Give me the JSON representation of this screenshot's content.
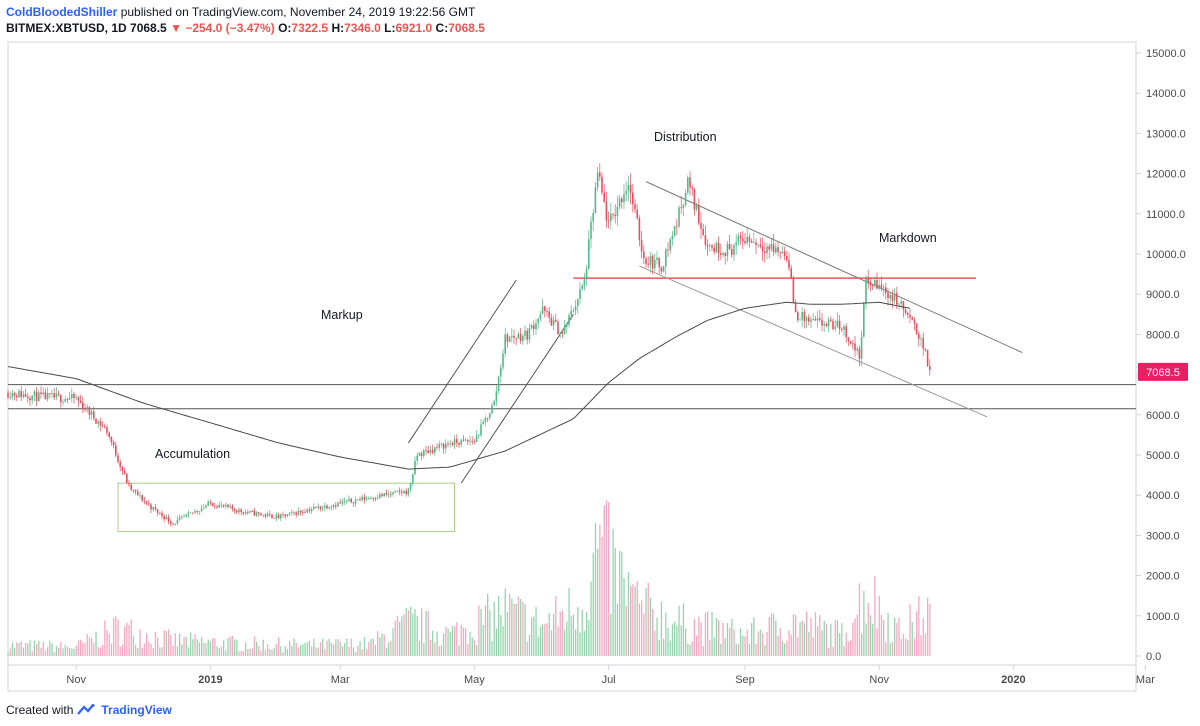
{
  "header": {
    "author": "ColdBloodedShiller",
    "published": "published on TradingView.com, November 24, 2019 19:22:56 GMT"
  },
  "symbol_line": {
    "symbol": "BITMEX:XBTUSD, 1D",
    "last": "7068.5",
    "change": "−254.0 (−3.47%)",
    "open_label": "O:",
    "open": "7322.5",
    "high_label": "H:",
    "high": "7346.0",
    "low_label": "L:",
    "low": "6921.0",
    "close_label": "C:",
    "close": "7068.5",
    "down_marker": "▼"
  },
  "footer": {
    "created_with": "Created with",
    "brand": "TradingView"
  },
  "colors": {
    "up": "#26a69a",
    "down": "#ef5350",
    "up_candle": "#53b987",
    "down_candle": "#eb4d5c",
    "resistance": "#ef5350",
    "price_label_bg": "#e91e63",
    "ma": "#4a4a4a",
    "box": "#7cb342"
  },
  "chart_data": {
    "type": "candlestick",
    "title": "",
    "y_ticks": [
      "15000.0",
      "14000.0",
      "13000.0",
      "12000.0",
      "11000.0",
      "10000.0",
      "9000.0",
      "8000.0",
      "7000.0",
      "6000.0",
      "5000.0",
      "4000.0",
      "3000.0",
      "2000.0",
      "1000.0",
      "0.0"
    ],
    "ylim": [
      0,
      15000
    ],
    "x_ticks": [
      "Nov",
      "2019",
      "Mar",
      "May",
      "Jul",
      "Sep",
      "Nov",
      "2020",
      "Mar"
    ],
    "last_price_label": "7068.5",
    "annotations": [
      "Accumulation",
      "Markup",
      "Distribution",
      "Markdown"
    ],
    "price_series": {
      "name": "XBTUSD",
      "dates": [
        "2018-10-01",
        "2018-10-15",
        "2018-11-01",
        "2018-11-15",
        "2018-11-25",
        "2018-12-05",
        "2018-12-15",
        "2019-01-01",
        "2019-01-15",
        "2019-02-01",
        "2019-02-15",
        "2019-03-01",
        "2019-03-15",
        "2019-04-01",
        "2019-04-05",
        "2019-04-20",
        "2019-05-01",
        "2019-05-10",
        "2019-05-15",
        "2019-05-25",
        "2019-06-01",
        "2019-06-10",
        "2019-06-20",
        "2019-06-26",
        "2019-07-01",
        "2019-07-10",
        "2019-07-17",
        "2019-07-25",
        "2019-08-01",
        "2019-08-06",
        "2019-08-15",
        "2019-08-25",
        "2019-09-01",
        "2019-09-10",
        "2019-09-20",
        "2019-09-24",
        "2019-10-01",
        "2019-10-15",
        "2019-10-23",
        "2019-10-26",
        "2019-11-01",
        "2019-11-10",
        "2019-11-20",
        "2019-11-24"
      ],
      "close": [
        6550,
        6450,
        6400,
        5600,
        4200,
        3700,
        3300,
        3800,
        3600,
        3450,
        3650,
        3800,
        3950,
        4100,
        5000,
        5300,
        5350,
        6300,
        7900,
        8000,
        8600,
        8000,
        9300,
        12000,
        10700,
        11800,
        9900,
        9700,
        10800,
        11800,
        10200,
        10100,
        10400,
        10200,
        10000,
        8500,
        8300,
        8200,
        7450,
        9300,
        9200,
        8800,
        7900,
        7068.5
      ]
    },
    "moving_average": {
      "name": "",
      "dates": [
        "2018-10-01",
        "2018-11-01",
        "2018-12-01",
        "2019-01-01",
        "2019-02-01",
        "2019-03-01",
        "2019-04-01",
        "2019-04-20",
        "2019-05-15",
        "2019-06-15",
        "2019-07-01",
        "2019-07-15",
        "2019-08-01",
        "2019-08-15",
        "2019-09-01",
        "2019-09-20",
        "2019-10-01",
        "2019-10-15",
        "2019-11-01",
        "2019-11-15"
      ],
      "values": [
        7200,
        6900,
        6300,
        5800,
        5300,
        4950,
        4650,
        4700,
        5100,
        5900,
        6800,
        7400,
        7950,
        8350,
        8650,
        8800,
        8750,
        8750,
        8800,
        8650
      ]
    },
    "volume": {
      "dates": [
        "2018-10-01",
        "2018-11-01",
        "2018-11-20",
        "2018-12-15",
        "2019-01-15",
        "2019-02-15",
        "2019-03-15",
        "2019-04-02",
        "2019-04-20",
        "2019-05-15",
        "2019-06-01",
        "2019-06-20",
        "2019-06-26",
        "2019-07-15",
        "2019-08-01",
        "2019-09-01",
        "2019-09-24",
        "2019-10-15",
        "2019-10-26",
        "2019-11-10",
        "2019-11-22"
      ],
      "values": [
        350,
        300,
        900,
        500,
        400,
        350,
        400,
        1100,
        700,
        1500,
        1000,
        1800,
        3600,
        1600,
        1100,
        700,
        1100,
        700,
        2100,
        800,
        1400
      ]
    },
    "lines": {
      "resistance": {
        "y": 9400,
        "x_from": "2019-06-15",
        "x_to": "2019-12-15"
      },
      "support_upper": {
        "y": 6750
      },
      "support_lower": {
        "y": 6150
      },
      "markup_channel_upper": {
        "from": [
          "2019-04-01",
          5300
        ],
        "to": [
          "2019-05-20",
          9350
        ]
      },
      "markup_channel_lower": {
        "from": [
          "2019-04-25",
          4300
        ],
        "to": [
          "2019-06-15",
          8500
        ]
      },
      "distribution_channel_upper": {
        "from": [
          "2019-07-18",
          11800
        ],
        "to": [
          "2020-01-05",
          7550
        ]
      },
      "distribution_channel_lower": {
        "from": [
          "2019-07-15",
          9700
        ],
        "to": [
          "2019-12-20",
          5950
        ]
      },
      "accumulation_box": {
        "from": [
          "2018-11-20",
          3100
        ],
        "to": [
          "2019-04-22",
          4300
        ]
      }
    }
  }
}
